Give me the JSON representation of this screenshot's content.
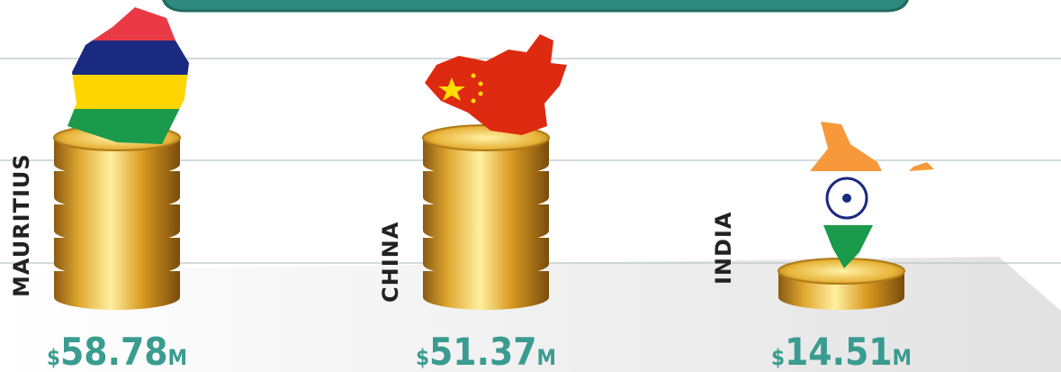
{
  "items": [
    {
      "name": "MAURITIUS",
      "currency": "$",
      "amount": "58.78",
      "unit": "M"
    },
    {
      "name": "CHINA",
      "currency": "$",
      "amount": "51.37",
      "unit": "M"
    },
    {
      "name": "INDIA",
      "currency": "$",
      "amount": "14.51",
      "unit": "M"
    }
  ]
}
